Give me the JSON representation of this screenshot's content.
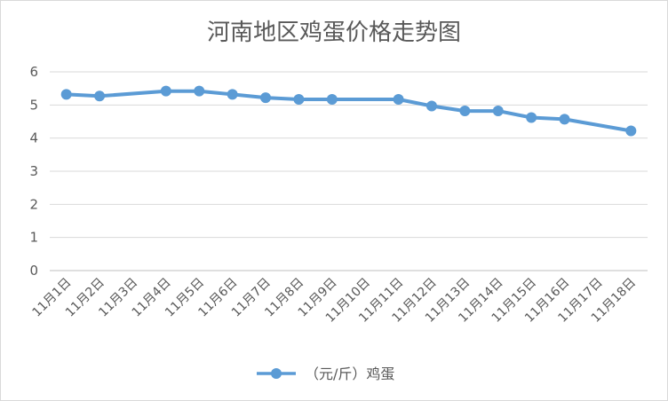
{
  "chart_data": {
    "type": "line",
    "title": "河南地区鸡蛋价格走势图",
    "xlabel": "",
    "ylabel": "",
    "categories": [
      "11月1日",
      "11月2日",
      "11月3日",
      "11月4日",
      "11月5日",
      "11月6日",
      "11月7日",
      "11月8日",
      "11月9日",
      "11月10日",
      "11月11日",
      "11月12日",
      "11月13日",
      "11月14日",
      "11月15日",
      "11月16日",
      "11月17日",
      "11月18日"
    ],
    "y_ticks": [
      "0",
      "1",
      "2",
      "3",
      "4",
      "5",
      "6"
    ],
    "ylim": [
      0,
      6
    ],
    "grid": true,
    "legend_position": "bottom",
    "series": [
      {
        "name": "（元/斤）鸡蛋",
        "color": "#5b9bd5",
        "points": [
          {
            "x": "11月1日",
            "y": 5.32
          },
          {
            "x": "11月2日",
            "y": 5.27
          },
          {
            "x": "11月4日",
            "y": 5.42
          },
          {
            "x": "11月5日",
            "y": 5.42
          },
          {
            "x": "11月6日",
            "y": 5.32
          },
          {
            "x": "11月7日",
            "y": 5.22
          },
          {
            "x": "11月8日",
            "y": 5.17
          },
          {
            "x": "11月9日",
            "y": 5.17
          },
          {
            "x": "11月11日",
            "y": 5.17
          },
          {
            "x": "11月12日",
            "y": 4.97
          },
          {
            "x": "11月13日",
            "y": 4.82
          },
          {
            "x": "11月14日",
            "y": 4.82
          },
          {
            "x": "11月15日",
            "y": 4.62
          },
          {
            "x": "11月16日",
            "y": 4.57
          },
          {
            "x": "11月18日",
            "y": 4.22
          }
        ]
      }
    ]
  }
}
